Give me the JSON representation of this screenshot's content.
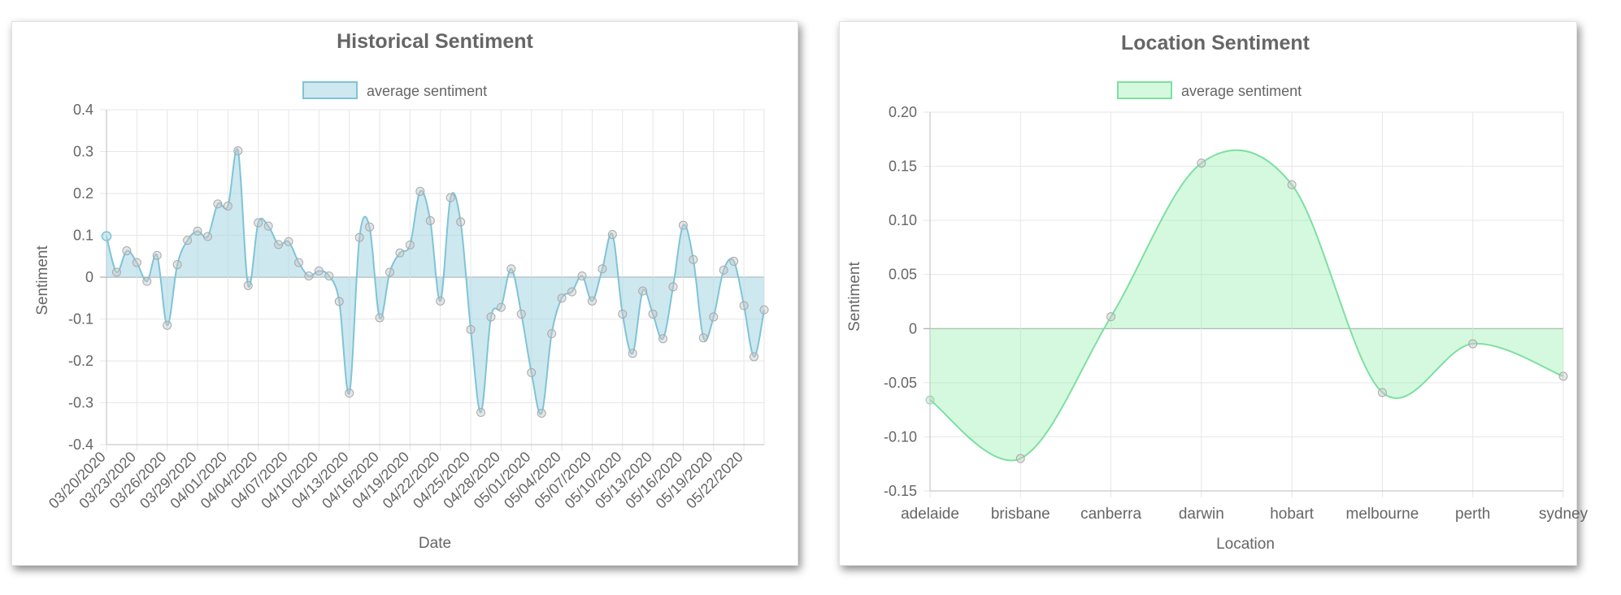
{
  "colors": {
    "historical_line": "#7fc4d6",
    "historical_fill": "rgba(173,216,230,0.6)",
    "location_line": "#7de0a0",
    "location_fill": "rgba(144,238,170,0.38)",
    "point_fill": "rgba(200,200,200,0.45)",
    "point_stroke": "#a9a9a9",
    "grid": "#e6e6e6",
    "zero_line": "#9a9a9a",
    "text": "#666666",
    "title": "#666666"
  },
  "charts": {
    "historical": {
      "title": "Historical Sentiment",
      "legend_label": "average sentiment",
      "xlabel": "Date",
      "ylabel": "Sentiment"
    },
    "location": {
      "title": "Location Sentiment",
      "legend_label": "average sentiment",
      "xlabel": "Location",
      "ylabel": "Sentiment"
    }
  },
  "chart_data": [
    {
      "type": "area",
      "title": "Historical Sentiment",
      "xlabel": "Date",
      "ylabel": "Sentiment",
      "legend": "top-center",
      "grid": true,
      "ylim": [
        -0.4,
        0.4
      ],
      "yticks": [
        "0.4",
        "0.3",
        "0.2",
        "0.1",
        "0",
        "-0.1",
        "-0.2",
        "-0.3",
        "-0.4"
      ],
      "ytick_values": [
        0.4,
        0.3,
        0.2,
        0.1,
        0,
        -0.1,
        -0.2,
        -0.3,
        -0.4
      ],
      "tick_labels": [
        "03/20/2020",
        "03/23/2020",
        "03/26/2020",
        "03/29/2020",
        "04/01/2020",
        "04/04/2020",
        "04/07/2020",
        "04/10/2020",
        "04/13/2020",
        "04/16/2020",
        "04/19/2020",
        "04/22/2020",
        "04/25/2020",
        "04/28/2020",
        "05/01/2020",
        "05/04/2020",
        "05/07/2020",
        "05/10/2020",
        "05/13/2020",
        "05/16/2020",
        "05/19/2020",
        "05/22/2020"
      ],
      "series": [
        {
          "name": "average sentiment",
          "values": [
            0.098,
            0.012,
            0.063,
            0.035,
            -0.01,
            0.052,
            -0.115,
            0.03,
            0.088,
            0.11,
            0.097,
            0.175,
            0.17,
            0.302,
            -0.02,
            0.13,
            0.122,
            0.078,
            0.085,
            0.035,
            0.003,
            0.015,
            0.003,
            -0.058,
            -0.277,
            0.095,
            0.12,
            -0.097,
            0.012,
            0.058,
            0.077,
            0.205,
            0.135,
            -0.057,
            0.19,
            0.132,
            -0.125,
            -0.323,
            -0.095,
            -0.072,
            0.02,
            -0.088,
            -0.228,
            -0.325,
            -0.135,
            -0.05,
            -0.035,
            0.003,
            -0.057,
            0.02,
            0.102,
            -0.088,
            -0.182,
            -0.033,
            -0.088,
            -0.147,
            -0.023,
            0.124,
            0.042,
            -0.145,
            -0.095,
            0.017,
            0.038,
            -0.068,
            -0.19,
            -0.078
          ]
        }
      ]
    },
    {
      "type": "area",
      "title": "Location Sentiment",
      "xlabel": "Location",
      "ylabel": "Sentiment",
      "legend": "top-center",
      "grid": true,
      "ylim": [
        -0.15,
        0.2
      ],
      "yticks": [
        "0.20",
        "0.15",
        "0.10",
        "0.05",
        "0",
        "-0.05",
        "-0.10",
        "-0.15"
      ],
      "ytick_values": [
        0.2,
        0.15,
        0.1,
        0.05,
        0,
        -0.05,
        -0.1,
        -0.15
      ],
      "categories": [
        "adelaide",
        "brisbane",
        "canberra",
        "darwin",
        "hobart",
        "melbourne",
        "perth",
        "sydney"
      ],
      "series": [
        {
          "name": "average sentiment",
          "values": [
            -0.066,
            -0.12,
            0.011,
            0.153,
            0.133,
            -0.059,
            -0.014,
            -0.044
          ]
        }
      ]
    }
  ]
}
